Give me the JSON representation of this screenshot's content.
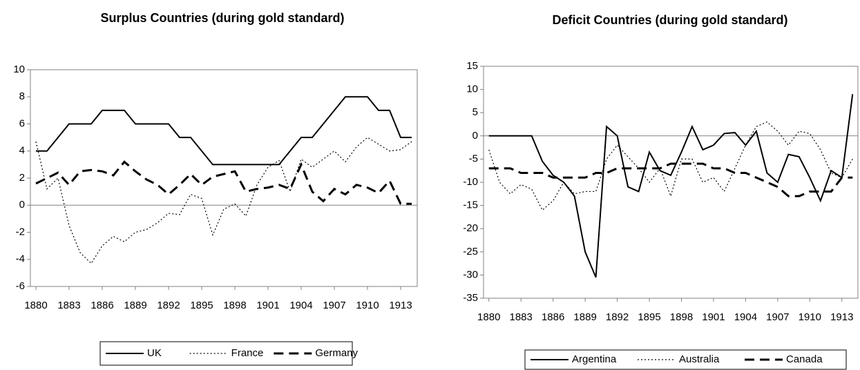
{
  "chart_data": [
    {
      "type": "line",
      "title": "Surplus Countries (during gold standard)",
      "x": [
        1880,
        1881,
        1882,
        1883,
        1884,
        1885,
        1886,
        1887,
        1888,
        1889,
        1890,
        1891,
        1892,
        1893,
        1894,
        1895,
        1896,
        1897,
        1898,
        1899,
        1900,
        1901,
        1902,
        1903,
        1904,
        1905,
        1906,
        1907,
        1908,
        1909,
        1910,
        1911,
        1912,
        1913,
        1914
      ],
      "xlim": [
        1879.5,
        1914.5
      ],
      "xticks": [
        1880,
        1883,
        1886,
        1889,
        1892,
        1895,
        1898,
        1901,
        1904,
        1907,
        1910,
        1913
      ],
      "ylim": [
        -6,
        10
      ],
      "yticks": [
        -6,
        -4,
        -2,
        0,
        2,
        4,
        6,
        8,
        10
      ],
      "series": [
        {
          "name": "UK",
          "color": "#000000",
          "dash": "solid",
          "values": [
            4,
            4,
            5,
            6,
            6,
            6,
            7,
            7,
            7,
            6,
            6,
            6,
            6,
            5,
            5,
            4,
            3,
            3,
            3,
            3,
            3,
            3,
            3,
            4,
            5,
            5,
            6,
            7,
            8,
            8,
            8,
            7,
            7,
            5,
            5
          ]
        },
        {
          "name": "France",
          "color": "#000000",
          "dash": "dotted",
          "values": [
            4.7,
            1.2,
            2.0,
            -1.5,
            -3.5,
            -4.3,
            -3.0,
            -2.3,
            -2.7,
            -2.0,
            -1.8,
            -1.3,
            -0.6,
            -0.7,
            0.8,
            0.5,
            -2.2,
            -0.3,
            0.1,
            -0.8,
            1.5,
            2.8,
            3.3,
            1.0,
            3.4,
            2.8,
            3.4,
            4.0,
            3.2,
            4.3,
            5.0,
            4.5,
            4.0,
            4.1,
            4.7
          ]
        },
        {
          "name": "Germany",
          "color": "#000000",
          "dash": "dashed",
          "values": [
            1.6,
            2.0,
            2.4,
            1.5,
            2.5,
            2.6,
            2.5,
            2.2,
            3.2,
            2.5,
            1.9,
            1.5,
            0.8,
            1.5,
            2.3,
            1.5,
            2.1,
            2.3,
            2.5,
            1.0,
            1.2,
            1.3,
            1.5,
            1.2,
            3.0,
            1.0,
            0.3,
            1.2,
            0.8,
            1.5,
            1.3,
            0.9,
            1.8,
            0.1,
            0.1
          ]
        }
      ]
    },
    {
      "type": "line",
      "title": "Deficit Countries (during gold standard)",
      "x": [
        1880,
        1881,
        1882,
        1883,
        1884,
        1885,
        1886,
        1887,
        1888,
        1889,
        1890,
        1891,
        1892,
        1893,
        1894,
        1895,
        1896,
        1897,
        1898,
        1899,
        1900,
        1901,
        1902,
        1903,
        1904,
        1905,
        1906,
        1907,
        1908,
        1909,
        1910,
        1911,
        1912,
        1913,
        1914
      ],
      "xlim": [
        1879.5,
        1914.5
      ],
      "xticks": [
        1880,
        1883,
        1886,
        1889,
        1892,
        1895,
        1898,
        1901,
        1904,
        1907,
        1910,
        1913
      ],
      "ylim": [
        -35,
        15
      ],
      "yticks": [
        -35,
        -30,
        -25,
        -20,
        -15,
        -10,
        -5,
        0,
        5,
        10,
        15
      ],
      "series": [
        {
          "name": "Argentina",
          "color": "#000000",
          "dash": "solid",
          "values": [
            0,
            0,
            0,
            0,
            0,
            -5.5,
            -8.5,
            -10,
            -13,
            -25,
            -30.5,
            2,
            0,
            -11,
            -12,
            -3.5,
            -7.5,
            -8.5,
            -3.5,
            2,
            -3,
            -2,
            0.5,
            0.7,
            -2,
            1,
            -8,
            -10,
            -4,
            -4.5,
            -9,
            -14,
            -7.5,
            -9,
            9
          ]
        },
        {
          "name": "Australia",
          "color": "#000000",
          "dash": "dotted",
          "values": [
            -3,
            -10,
            -12.5,
            -10.5,
            -11.5,
            -16,
            -14,
            -10,
            -12.5,
            -12,
            -12,
            -5,
            -2,
            -4.5,
            -7,
            -10,
            -7,
            -13,
            -5,
            -5,
            -10,
            -9,
            -12,
            -7,
            -2,
            2,
            3,
            1,
            -2,
            1,
            0.5,
            -3,
            -8,
            -9,
            -5
          ]
        },
        {
          "name": "Canada",
          "color": "#000000",
          "dash": "dashed",
          "values": [
            -7,
            -7,
            -7,
            -8,
            -8,
            -8,
            -9,
            -9,
            -9,
            -9,
            -8,
            -8,
            -7,
            -7,
            -7,
            -7,
            -7,
            -6,
            -6,
            -6,
            -6,
            -7,
            -7,
            -8,
            -8,
            -9,
            -10,
            -11,
            -13,
            -13,
            -12,
            -12,
            -12,
            -9,
            -9
          ]
        }
      ]
    }
  ]
}
